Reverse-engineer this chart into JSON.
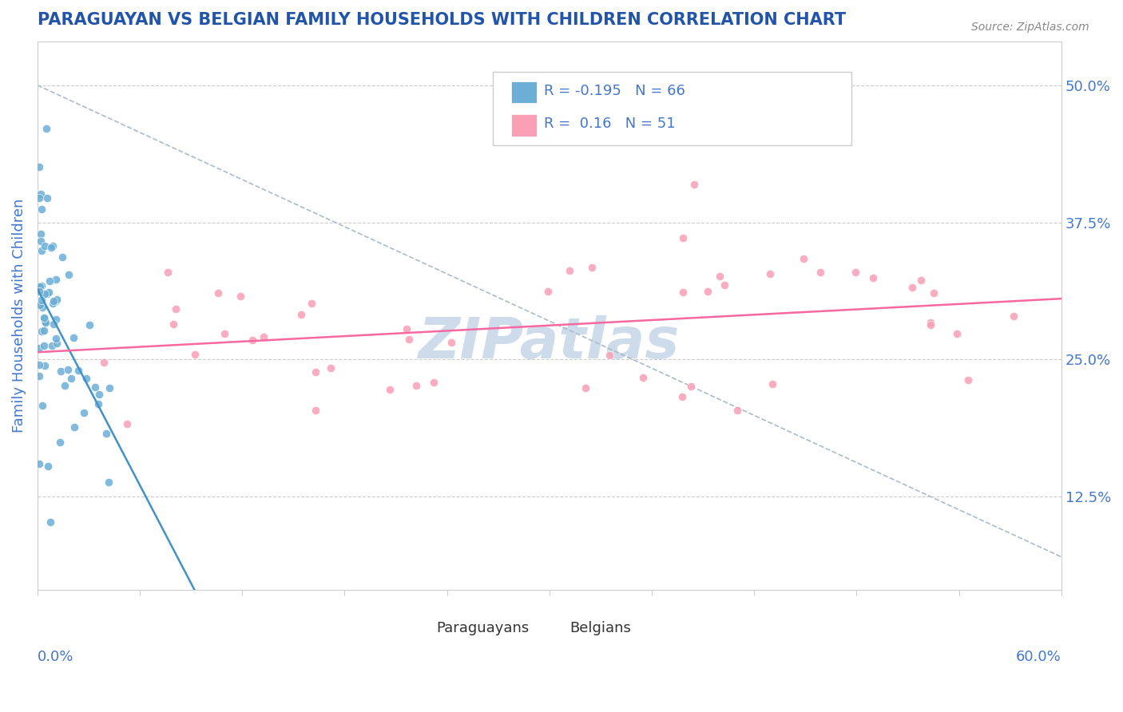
{
  "title": "PARAGUAYAN VS BELGIAN FAMILY HOUSEHOLDS WITH CHILDREN CORRELATION CHART",
  "source": "Source: ZipAtlas.com",
  "ylabel": "Family Households with Children",
  "ytick_vals": [
    0.125,
    0.25,
    0.375,
    0.5
  ],
  "ytick_labels": [
    "12.5%",
    "25.0%",
    "37.5%",
    "50.0%"
  ],
  "xlim": [
    0.0,
    0.6
  ],
  "ylim": [
    0.04,
    0.54
  ],
  "R_paraguayan": -0.195,
  "N_paraguayan": 66,
  "R_belgian": 0.16,
  "N_belgian": 51,
  "paraguayan_color": "#6baed6",
  "belgian_color": "#fa9fb5",
  "paraguayan_line_color": "#4292c6",
  "belgian_line_color": "#f768a1",
  "watermark_color": "#c8d8e8",
  "title_color": "#2255aa",
  "axis_label_color": "#4477cc",
  "background_color": "#ffffff"
}
